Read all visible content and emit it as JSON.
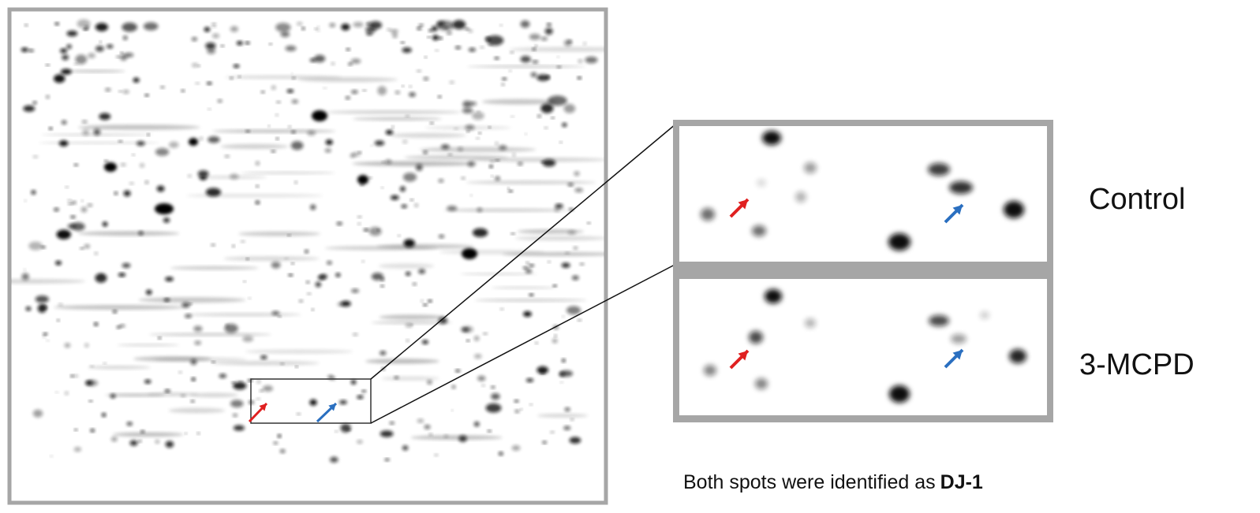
{
  "labels": {
    "control": "Control",
    "treatment": "3-MCPD"
  },
  "caption": {
    "text": "Both spots were identified as",
    "bold": "DJ-1"
  }
}
